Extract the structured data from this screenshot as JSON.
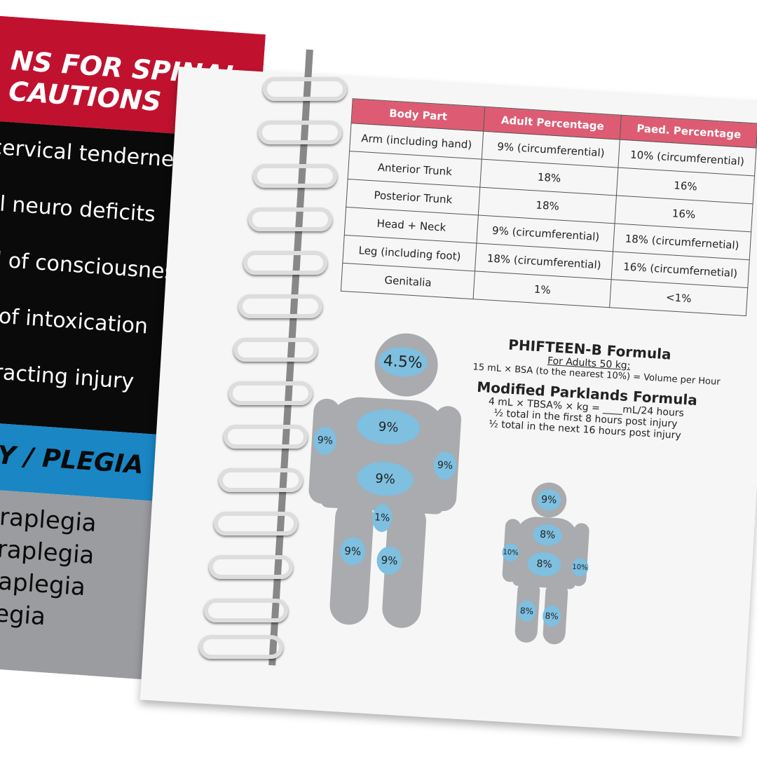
{
  "left_page": {
    "header": [
      "NS FOR SPINAL",
      "CAUTIONS"
    ],
    "items": [
      "cervical tenderness",
      "al neuro deficits",
      "el of consciousness",
      "e of intoxication",
      "stracting injury"
    ],
    "band": "Y / PLEGIA",
    "grey_items": [
      "Tetraplegia",
      "Tetraplegia",
      "Paraplegia",
      "aplegia"
    ]
  },
  "table": {
    "headers": [
      "Body Part",
      "Adult Percentage",
      "Paed. Percentage"
    ],
    "rows": [
      [
        "Arm (including hand)",
        "9% (circumferential)",
        "10% (circumferential)"
      ],
      [
        "Anterior Trunk",
        "18%",
        "16%"
      ],
      [
        "Posterior Trunk",
        "18%",
        "16%"
      ],
      [
        "Head + Neck",
        "9% (circumferential)",
        "18% (circumfernetial)"
      ],
      [
        "Leg (including foot)",
        "18% (circumferential)",
        "16% (circumfernetial)"
      ],
      [
        "Genitalia",
        "1%",
        "<1%"
      ]
    ]
  },
  "formulas": {
    "phifteen_title": "PHIFTEEN-B Formula",
    "phifteen_sub": "For Adults    50 kg:",
    "phifteen_body": "15 mL × BSA (to the nearest 10%) = Volume per Hour",
    "parkland_title": "Modified Parklands Formula",
    "parkland_lines": [
      "4 mL × TBSA%  × kg = ____mL/24 hours",
      "½ total in the first 8 hours post injury",
      "½ total in the next 16 hours post injury"
    ]
  },
  "adult_figure": {
    "head": "4.5%",
    "chest": "9%",
    "arm_left": "9%",
    "arm_right": "9%",
    "abdomen": "9%",
    "genitalia": "1%",
    "leg_left": "9%",
    "leg_right": "9%"
  },
  "child_figure": {
    "head": "9%",
    "chest": "8%",
    "abdomen": "8%",
    "arm_left": "10%",
    "arm_right": "10%",
    "leg_left": "8%",
    "leg_right": "8%"
  },
  "colors": {
    "red": "#c0122f",
    "blue": "#1a86c4",
    "table_header": "#dd5c73",
    "body_grey": "#a9abae",
    "circle_blue": "#7fbfe0"
  }
}
